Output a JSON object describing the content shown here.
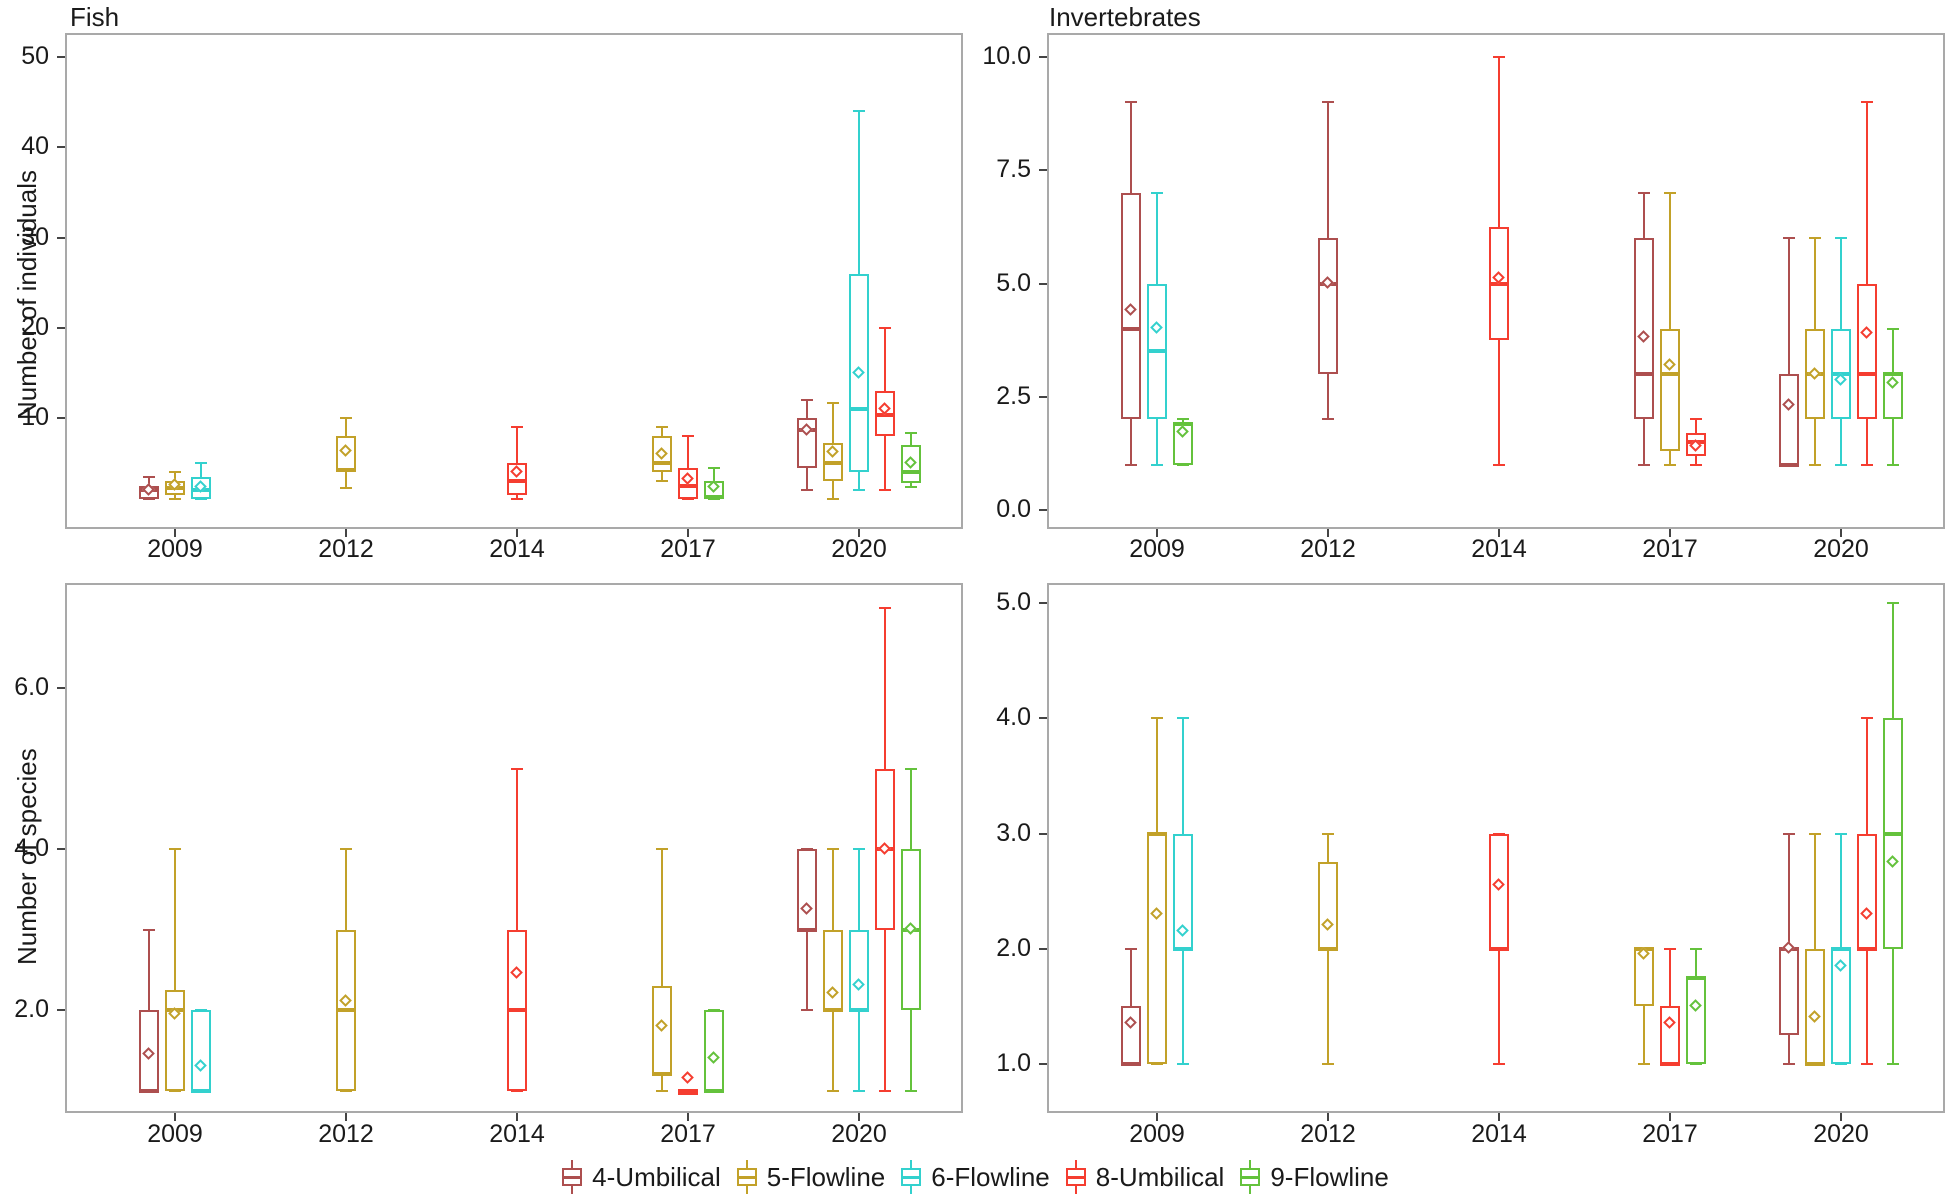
{
  "figure": {
    "panel_titles": {
      "fish": "Fish",
      "invertebrates": "Invertebrates"
    },
    "y_axis_titles": {
      "individuals": "Number of individuals",
      "species": "Number of species"
    },
    "colors": {
      "panel_border": "#a9a9a9",
      "tick": "#444444",
      "text": "#1a1a1a",
      "background": "#ffffff"
    }
  },
  "series": [
    {
      "id": "4-Umbilical",
      "label": "4-Umbilical",
      "color": "#ad4f4f"
    },
    {
      "id": "5-Flowline",
      "label": "5-Flowline",
      "color": "#c2a129"
    },
    {
      "id": "6-Flowline",
      "label": "6-Flowline",
      "color": "#33d1ce"
    },
    {
      "id": "8-Umbilical",
      "label": "8-Umbilical",
      "color": "#f53d30"
    },
    {
      "id": "9-Flowline",
      "label": "9-Flowline",
      "color": "#64c23c"
    }
  ],
  "categories": [
    "2009",
    "2012",
    "2014",
    "2017",
    "2020"
  ],
  "chart_data": [
    {
      "type": "boxplot",
      "key": "fish_individuals",
      "title": "Fish",
      "ylabel": "Number of individuals",
      "ylim": [
        -2.3,
        52.7
      ],
      "yticks": [
        {
          "v": 10,
          "label": "10"
        },
        {
          "v": 20,
          "label": "20"
        },
        {
          "v": 30,
          "label": "30"
        },
        {
          "v": 40,
          "label": "40"
        },
        {
          "v": 50,
          "label": "50"
        }
      ],
      "groups": [
        {
          "year": "2009",
          "boxes": [
            {
              "series": "4-Umbilical",
              "lo": 1,
              "q1": 1,
              "med": 2,
              "q3": 2.5,
              "hi": 3.5,
              "mean": 2.0
            },
            {
              "series": "5-Flowline",
              "lo": 1,
              "q1": 1.5,
              "med": 2.3,
              "q3": 3,
              "hi": 4,
              "mean": 2.5
            },
            {
              "series": "6-Flowline",
              "lo": 1,
              "q1": 1,
              "med": 2,
              "q3": 3.5,
              "hi": 5,
              "mean": 2.3
            }
          ]
        },
        {
          "year": "2012",
          "boxes": [
            {
              "series": "5-Flowline",
              "lo": 2.3,
              "q1": 4,
              "med": 4.3,
              "q3": 8,
              "hi": 10,
              "mean": 6.3
            }
          ]
        },
        {
          "year": "2014",
          "boxes": [
            {
              "series": "8-Umbilical",
              "lo": 1,
              "q1": 1.5,
              "med": 3,
              "q3": 5,
              "hi": 9,
              "mean": 4.0
            }
          ]
        },
        {
          "year": "2017",
          "boxes": [
            {
              "series": "5-Flowline",
              "lo": 3,
              "q1": 4,
              "med": 5,
              "q3": 8,
              "hi": 9,
              "mean": 6.0
            },
            {
              "series": "8-Umbilical",
              "lo": 1,
              "q1": 1,
              "med": 2.5,
              "q3": 4.5,
              "hi": 8,
              "mean": 3.2
            },
            {
              "series": "9-Flowline",
              "lo": 1,
              "q1": 1,
              "med": 1.3,
              "q3": 3,
              "hi": 4.5,
              "mean": 2.3
            }
          ]
        },
        {
          "year": "2020",
          "boxes": [
            {
              "series": "4-Umbilical",
              "lo": 2,
              "q1": 4.5,
              "med": 8.7,
              "q3": 10,
              "hi": 12,
              "mean": 8.6
            },
            {
              "series": "5-Flowline",
              "lo": 1,
              "q1": 3,
              "med": 5,
              "q3": 7.3,
              "hi": 11.7,
              "mean": 6.2
            },
            {
              "series": "6-Flowline",
              "lo": 2,
              "q1": 4,
              "med": 11,
              "q3": 26,
              "hi": 44,
              "mean": 15
            },
            {
              "series": "8-Umbilical",
              "lo": 2,
              "q1": 8,
              "med": 10.3,
              "q3": 13,
              "hi": 20,
              "mean": 11
            },
            {
              "series": "9-Flowline",
              "lo": 2.4,
              "q1": 2.8,
              "med": 4,
              "q3": 7,
              "hi": 8.4,
              "mean": 5
            }
          ]
        }
      ]
    },
    {
      "type": "boxplot",
      "key": "invert_individuals",
      "title": "Invertebrates",
      "ylabel": "",
      "ylim": [
        -0.45,
        10.5
      ],
      "yticks": [
        {
          "v": 0,
          "label": "0.0"
        },
        {
          "v": 2.5,
          "label": "2.5"
        },
        {
          "v": 5,
          "label": "5.0"
        },
        {
          "v": 7.5,
          "label": "7.5"
        },
        {
          "v": 10,
          "label": "10.0"
        }
      ],
      "groups": [
        {
          "year": "2009",
          "boxes": [
            {
              "series": "4-Umbilical",
              "lo": 1,
              "q1": 2,
              "med": 4,
              "q3": 7,
              "hi": 9,
              "mean": 4.4
            },
            {
              "series": "6-Flowline",
              "lo": 1,
              "q1": 2,
              "med": 3.5,
              "q3": 5,
              "hi": 7,
              "mean": 4.0
            },
            {
              "series": "9-Flowline",
              "lo": 1,
              "q1": 1,
              "med": 1.9,
              "q3": 1.9,
              "hi": 2,
              "mean": 1.7
            }
          ]
        },
        {
          "year": "2012",
          "boxes": [
            {
              "series": "4-Umbilical",
              "lo": 2,
              "q1": 3,
              "med": 5,
              "q3": 6,
              "hi": 9,
              "mean": 5.0
            }
          ]
        },
        {
          "year": "2014",
          "boxes": [
            {
              "series": "8-Umbilical",
              "lo": 1,
              "q1": 3.75,
              "med": 5,
              "q3": 6.25,
              "hi": 10,
              "mean": 5.1
            }
          ]
        },
        {
          "year": "2017",
          "boxes": [
            {
              "series": "4-Umbilical",
              "lo": 1,
              "q1": 2,
              "med": 3,
              "q3": 6,
              "hi": 7,
              "mean": 3.8
            },
            {
              "series": "5-Flowline",
              "lo": 1,
              "q1": 1.3,
              "med": 3,
              "q3": 4,
              "hi": 7,
              "mean": 3.2
            },
            {
              "series": "8-Umbilical",
              "lo": 1,
              "q1": 1.2,
              "med": 1.5,
              "q3": 1.7,
              "hi": 2,
              "mean": 1.4
            }
          ]
        },
        {
          "year": "2020",
          "boxes": [
            {
              "series": "4-Umbilical",
              "lo": 1,
              "q1": 1,
              "med": 1,
              "q3": 3,
              "hi": 6,
              "mean": 2.3
            },
            {
              "series": "5-Flowline",
              "lo": 1,
              "q1": 2,
              "med": 3,
              "q3": 4,
              "hi": 6,
              "mean": 3.0
            },
            {
              "series": "6-Flowline",
              "lo": 1,
              "q1": 2,
              "med": 3,
              "q3": 4,
              "hi": 6,
              "mean": 2.85
            },
            {
              "series": "8-Umbilical",
              "lo": 1,
              "q1": 2,
              "med": 3,
              "q3": 5,
              "hi": 9,
              "mean": 3.9
            },
            {
              "series": "9-Flowline",
              "lo": 1,
              "q1": 2,
              "med": 3,
              "q3": 3,
              "hi": 4,
              "mean": 2.8
            }
          ]
        }
      ]
    },
    {
      "type": "boxplot",
      "key": "fish_species",
      "title": "",
      "ylabel": "Number of species",
      "ylim": [
        0.7,
        7.3
      ],
      "yticks": [
        {
          "v": 2,
          "label": "2.0"
        },
        {
          "v": 4,
          "label": "4.0"
        },
        {
          "v": 6,
          "label": "6.0"
        }
      ],
      "groups": [
        {
          "year": "2009",
          "boxes": [
            {
              "series": "4-Umbilical",
              "lo": 1,
              "q1": 1,
              "med": 1,
              "q3": 2,
              "hi": 3,
              "mean": 1.45
            },
            {
              "series": "5-Flowline",
              "lo": 1,
              "q1": 1,
              "med": 2,
              "q3": 2.25,
              "hi": 4,
              "mean": 1.95
            },
            {
              "series": "6-Flowline",
              "lo": 1,
              "q1": 1,
              "med": 1,
              "q3": 2,
              "hi": 2,
              "mean": 1.3
            }
          ]
        },
        {
          "year": "2012",
          "boxes": [
            {
              "series": "5-Flowline",
              "lo": 1,
              "q1": 1,
              "med": 2,
              "q3": 3,
              "hi": 4,
              "mean": 2.1
            }
          ]
        },
        {
          "year": "2014",
          "boxes": [
            {
              "series": "8-Umbilical",
              "lo": 1,
              "q1": 1,
              "med": 2,
              "q3": 3,
              "hi": 5,
              "mean": 2.45
            }
          ]
        },
        {
          "year": "2017",
          "boxes": [
            {
              "series": "5-Flowline",
              "lo": 1,
              "q1": 1.2,
              "med": 1.2,
              "q3": 2.3,
              "hi": 4,
              "mean": 1.8
            },
            {
              "series": "8-Umbilical",
              "lo": 1,
              "q1": 1,
              "med": 1,
              "q3": 1,
              "hi": 1,
              "mean": 1.15
            },
            {
              "series": "9-Flowline",
              "lo": 1,
              "q1": 1,
              "med": 1,
              "q3": 2,
              "hi": 2,
              "mean": 1.4
            }
          ]
        },
        {
          "year": "2020",
          "boxes": [
            {
              "series": "4-Umbilical",
              "lo": 2,
              "q1": 3,
              "med": 3,
              "q3": 4,
              "hi": 4,
              "mean": 3.25
            },
            {
              "series": "5-Flowline",
              "lo": 1,
              "q1": 2,
              "med": 2,
              "q3": 3,
              "hi": 4,
              "mean": 2.2
            },
            {
              "series": "6-Flowline",
              "lo": 1,
              "q1": 2,
              "med": 2,
              "q3": 3,
              "hi": 4,
              "mean": 2.3
            },
            {
              "series": "8-Umbilical",
              "lo": 1,
              "q1": 3,
              "med": 4,
              "q3": 5,
              "hi": 7,
              "mean": 4.0
            },
            {
              "series": "9-Flowline",
              "lo": 1,
              "q1": 2,
              "med": 3,
              "q3": 4,
              "hi": 5,
              "mean": 3.0
            }
          ]
        }
      ]
    },
    {
      "type": "boxplot",
      "key": "invert_species",
      "title": "",
      "ylabel": "",
      "ylim": [
        0.55,
        5.2
      ],
      "yticks": [
        {
          "v": 1,
          "label": "1.0"
        },
        {
          "v": 2,
          "label": "2.0"
        },
        {
          "v": 3,
          "label": "3.0"
        },
        {
          "v": 4,
          "label": "4.0"
        },
        {
          "v": 5,
          "label": "5.0"
        }
      ],
      "groups": [
        {
          "year": "2009",
          "boxes": [
            {
              "series": "4-Umbilical",
              "lo": 1,
              "q1": 1,
              "med": 1,
              "q3": 1.5,
              "hi": 2,
              "mean": 1.35
            },
            {
              "series": "5-Flowline",
              "lo": 1,
              "q1": 1,
              "med": 3,
              "q3": 3,
              "hi": 4,
              "mean": 2.3
            },
            {
              "series": "6-Flowline",
              "lo": 1,
              "q1": 2,
              "med": 2,
              "q3": 3,
              "hi": 4,
              "mean": 2.15
            }
          ]
        },
        {
          "year": "2012",
          "boxes": [
            {
              "series": "5-Flowline",
              "lo": 1,
              "q1": 2,
              "med": 2,
              "q3": 2.75,
              "hi": 3,
              "mean": 2.2
            }
          ]
        },
        {
          "year": "2014",
          "boxes": [
            {
              "series": "8-Umbilical",
              "lo": 1,
              "q1": 2,
              "med": 2,
              "q3": 3,
              "hi": 3,
              "mean": 2.55
            }
          ]
        },
        {
          "year": "2017",
          "boxes": [
            {
              "series": "5-Flowline",
              "lo": 1,
              "q1": 1.5,
              "med": 2,
              "q3": 2,
              "hi": 2,
              "mean": 1.95
            },
            {
              "series": "8-Umbilical",
              "lo": 1,
              "q1": 1,
              "med": 1,
              "q3": 1.5,
              "hi": 2,
              "mean": 1.35
            },
            {
              "series": "9-Flowline",
              "lo": 1,
              "q1": 1,
              "med": 1.75,
              "q3": 1.75,
              "hi": 2,
              "mean": 1.5
            }
          ]
        },
        {
          "year": "2020",
          "boxes": [
            {
              "series": "4-Umbilical",
              "lo": 1,
              "q1": 1.25,
              "med": 2,
              "q3": 2,
              "hi": 3,
              "mean": 2.0
            },
            {
              "series": "5-Flowline",
              "lo": 1,
              "q1": 1,
              "med": 1,
              "q3": 2,
              "hi": 3,
              "mean": 1.4
            },
            {
              "series": "6-Flowline",
              "lo": 1,
              "q1": 1,
              "med": 2,
              "q3": 2,
              "hi": 3,
              "mean": 1.85
            },
            {
              "series": "8-Umbilical",
              "lo": 1,
              "q1": 2,
              "med": 2,
              "q3": 3,
              "hi": 4,
              "mean": 2.3
            },
            {
              "series": "9-Flowline",
              "lo": 1,
              "q1": 2,
              "med": 3,
              "q3": 4,
              "hi": 5,
              "mean": 2.75
            }
          ]
        }
      ]
    }
  ]
}
